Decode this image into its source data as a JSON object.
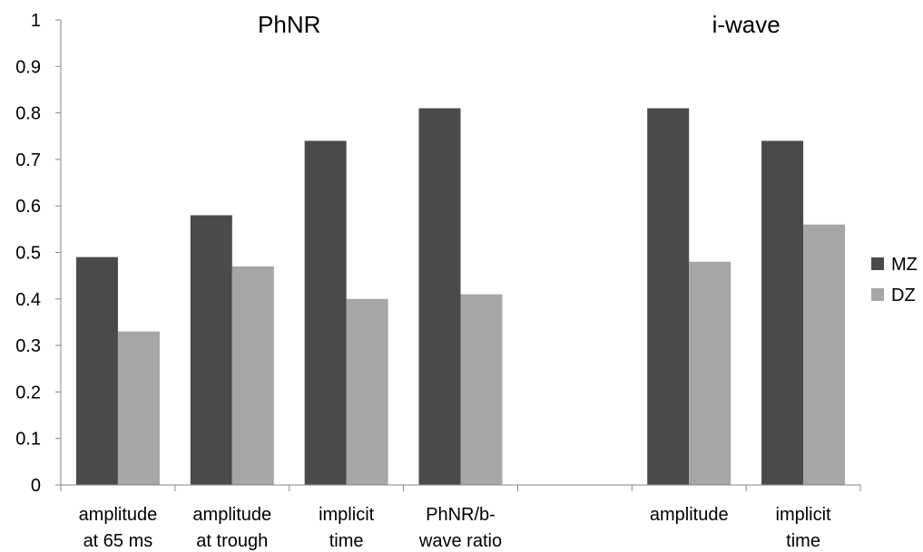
{
  "chart_data": {
    "type": "bar",
    "categories": [
      [
        "amplitude",
        "at 65 ms"
      ],
      [
        "amplitude",
        "at trough"
      ],
      [
        "implicit",
        "time"
      ],
      [
        "PhNR/b-",
        "wave ratio"
      ],
      [
        "",
        ""
      ],
      [
        "amplitude",
        ""
      ],
      [
        "implicit",
        "time"
      ]
    ],
    "series": [
      {
        "name": "MZ",
        "color": "#4a4a4a",
        "values": [
          0.49,
          0.58,
          0.74,
          0.81,
          null,
          0.81,
          0.74
        ]
      },
      {
        "name": "DZ",
        "color": "#a6a6a6",
        "values": [
          0.33,
          0.47,
          0.4,
          0.41,
          null,
          0.48,
          0.56
        ]
      }
    ],
    "ylim": [
      0,
      1
    ],
    "yticks": [
      0,
      0.1,
      0.2,
      0.3,
      0.4,
      0.5,
      0.6,
      0.7,
      0.8,
      0.9,
      1
    ],
    "ytick_labels": [
      "0",
      "0.1",
      "0.2",
      "0.3",
      "0.4",
      "0.5",
      "0.6",
      "0.7",
      "0.8",
      "0.9",
      "1"
    ],
    "group_titles": [
      {
        "text": "PhNR",
        "category_span": [
          0,
          3
        ]
      },
      {
        "text": "i-wave",
        "category_span": [
          5,
          6
        ]
      }
    ],
    "legend_position": "right",
    "grid": false
  }
}
